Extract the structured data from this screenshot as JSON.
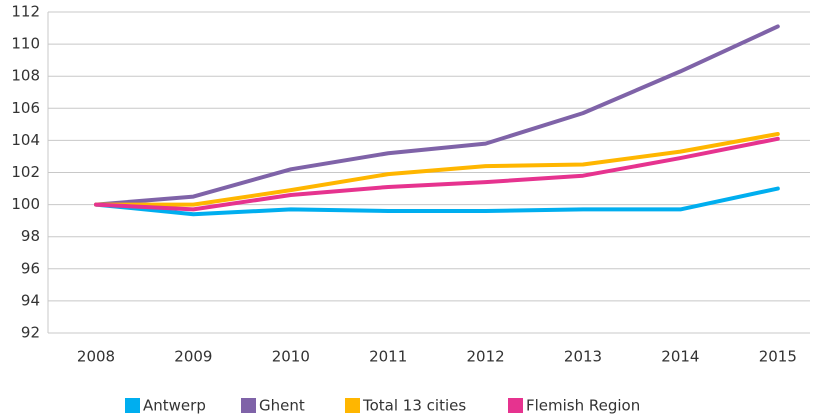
{
  "chart_data": {
    "type": "line",
    "categories": [
      "2008",
      "2009",
      "2010",
      "2011",
      "2012",
      "2013",
      "2014",
      "2015"
    ],
    "series": [
      {
        "name": "Antwerp",
        "color": "#00aeef",
        "values": [
          100,
          99.4,
          99.7,
          99.6,
          99.6,
          99.7,
          99.7,
          101.0
        ]
      },
      {
        "name": "Ghent",
        "color": "#7f63a8",
        "values": [
          100,
          100.5,
          102.2,
          103.2,
          103.8,
          105.7,
          108.3,
          111.1
        ]
      },
      {
        "name": "Total 13 cities",
        "color": "#ffb600",
        "values": [
          100,
          100,
          100.9,
          101.9,
          102.4,
          102.5,
          103.3,
          104.4
        ]
      },
      {
        "name": "Flemish Region",
        "color": "#e6338f",
        "values": [
          100,
          99.7,
          100.6,
          101.1,
          101.4,
          101.8,
          102.9,
          104.1
        ]
      }
    ],
    "ylim": [
      92,
      112
    ],
    "yticks": [
      92,
      94,
      96,
      98,
      100,
      102,
      104,
      106,
      108,
      110,
      112
    ],
    "grid": true,
    "legend": "bottom"
  }
}
